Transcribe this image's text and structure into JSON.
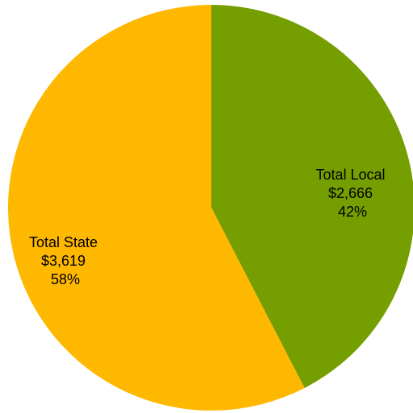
{
  "chart_data": {
    "type": "pie",
    "title": "",
    "slices": [
      {
        "name": "Total Local",
        "value": 2666,
        "value_label": "$2,666",
        "percent": 42,
        "percent_label": "42%",
        "color": "#759E00"
      },
      {
        "name": "Total State",
        "value": 3619,
        "value_label": "$3,619",
        "percent": 58,
        "percent_label": "58%",
        "color": "#FFB800"
      }
    ],
    "start_angle": "12 o'clock",
    "direction": "clockwise",
    "legend": "none"
  }
}
